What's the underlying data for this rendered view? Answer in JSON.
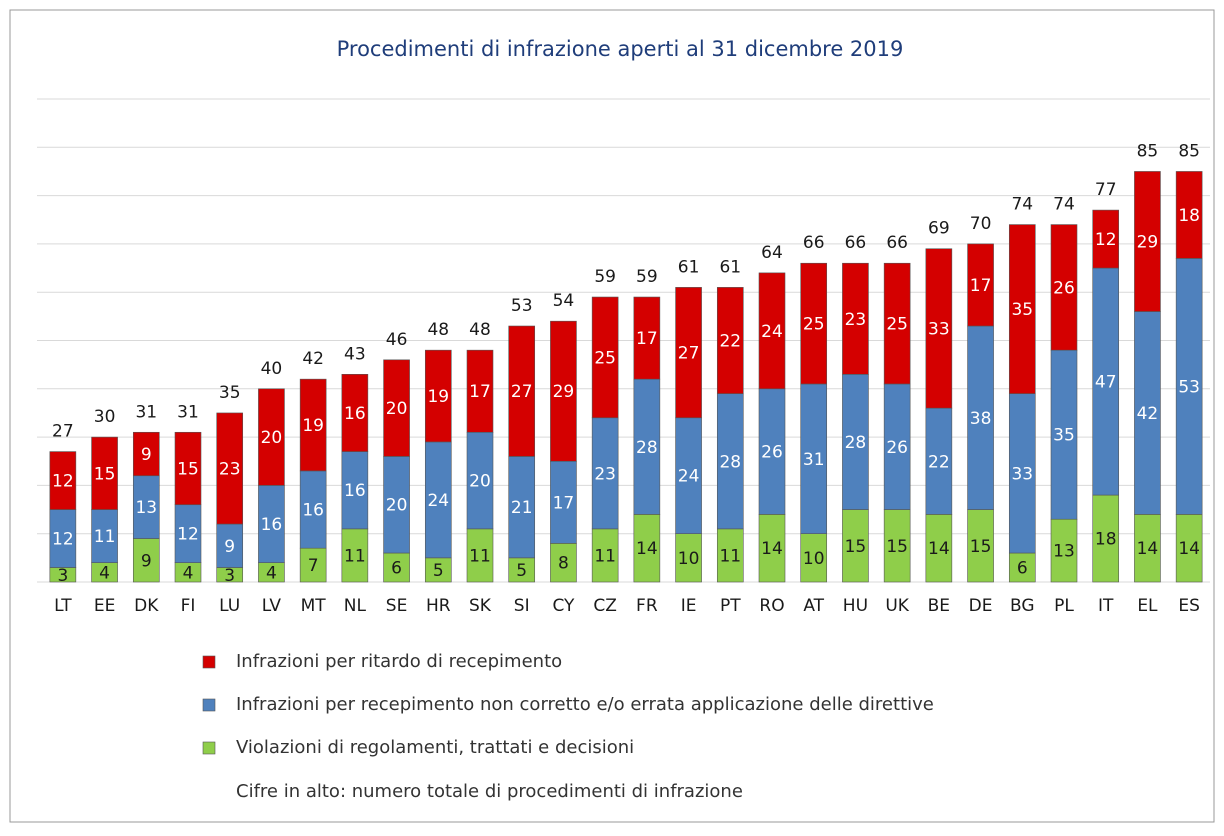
{
  "chart_data": {
    "type": "stacked_bar",
    "title": "Procedimenti di infrazione aperti al 31 dicembre 2019",
    "categories": [
      "LT",
      "EE",
      "DK",
      "FI",
      "LU",
      "LV",
      "MT",
      "NL",
      "SE",
      "HR",
      "SK",
      "SI",
      "CY",
      "CZ",
      "FR",
      "IE",
      "PT",
      "RO",
      "AT",
      "HU",
      "UK",
      "BE",
      "DE",
      "BG",
      "PL",
      "IT",
      "EL",
      "ES"
    ],
    "series": [
      {
        "name": "Violazioni di regolamenti, trattati e decisioni",
        "color": "#8fce4a",
        "values": [
          3,
          4,
          9,
          4,
          3,
          4,
          7,
          11,
          6,
          5,
          11,
          5,
          8,
          11,
          14,
          10,
          11,
          14,
          10,
          15,
          15,
          14,
          15,
          6,
          13,
          18,
          14,
          14
        ]
      },
      {
        "name": "Infrazioni per recepimento non corretto e/o errata applicazione delle direttive",
        "color": "#4f81bd",
        "values": [
          12,
          11,
          13,
          12,
          9,
          16,
          16,
          16,
          20,
          24,
          20,
          21,
          17,
          23,
          28,
          24,
          28,
          26,
          31,
          28,
          26,
          22,
          38,
          33,
          35,
          47,
          42,
          53
        ]
      },
      {
        "name": "Infrazioni per ritardo di recepimento",
        "color": "#d40000",
        "values": [
          12,
          15,
          9,
          15,
          23,
          20,
          19,
          16,
          20,
          19,
          17,
          27,
          29,
          25,
          17,
          27,
          22,
          24,
          25,
          23,
          25,
          33,
          17,
          35,
          26,
          12,
          29,
          18
        ]
      }
    ],
    "totals": [
      27,
      30,
      31,
      31,
      35,
      40,
      42,
      43,
      46,
      48,
      48,
      53,
      54,
      59,
      59,
      61,
      61,
      64,
      66,
      66,
      66,
      69,
      70,
      74,
      74,
      77,
      85,
      85
    ],
    "note": "Cifre in alto: numero totale di procedimenti di infrazione",
    "ylim": [
      0,
      100
    ],
    "yticks": [
      0,
      10,
      20,
      30,
      40,
      50,
      60,
      70,
      80,
      90,
      100
    ],
    "grid": true
  }
}
